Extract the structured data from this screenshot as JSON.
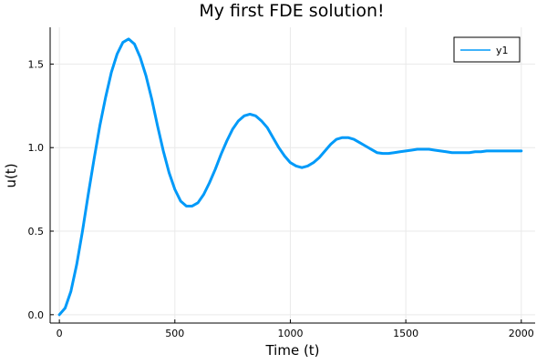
{
  "chart_data": {
    "type": "line",
    "title": "My first FDE solution!",
    "xlabel": "Time (t)",
    "ylabel": "u(t)",
    "xlim": [
      -40,
      2060
    ],
    "ylim": [
      -0.05,
      1.72
    ],
    "xticks": [
      0,
      500,
      1000,
      1500,
      2000
    ],
    "xtick_labels": [
      "0",
      "500",
      "1000",
      "1500",
      "2000"
    ],
    "yticks": [
      0.0,
      0.5,
      1.0,
      1.5
    ],
    "ytick_labels": [
      "0.0",
      "0.5",
      "1.0",
      "1.5"
    ],
    "grid": true,
    "legend_position": "top-right",
    "series": [
      {
        "name": "y1",
        "color": "#009af9",
        "x": [
          0,
          25,
          50,
          75,
          100,
          125,
          150,
          175,
          200,
          225,
          250,
          275,
          300,
          325,
          350,
          375,
          400,
          425,
          450,
          475,
          500,
          525,
          550,
          575,
          600,
          625,
          650,
          675,
          700,
          725,
          750,
          775,
          800,
          825,
          850,
          875,
          900,
          925,
          950,
          975,
          1000,
          1025,
          1050,
          1075,
          1100,
          1125,
          1150,
          1175,
          1200,
          1225,
          1250,
          1275,
          1300,
          1325,
          1350,
          1375,
          1400,
          1425,
          1450,
          1475,
          1500,
          1525,
          1550,
          1575,
          1600,
          1625,
          1650,
          1675,
          1700,
          1725,
          1750,
          1775,
          1800,
          1825,
          1850,
          1875,
          1900,
          1925,
          1950,
          1975,
          2000
        ],
        "y": [
          0.0,
          0.04,
          0.14,
          0.3,
          0.5,
          0.72,
          0.93,
          1.13,
          1.3,
          1.45,
          1.56,
          1.63,
          1.65,
          1.62,
          1.54,
          1.43,
          1.29,
          1.13,
          0.98,
          0.85,
          0.75,
          0.68,
          0.65,
          0.65,
          0.67,
          0.72,
          0.79,
          0.87,
          0.96,
          1.04,
          1.11,
          1.16,
          1.19,
          1.2,
          1.19,
          1.16,
          1.12,
          1.06,
          1.0,
          0.95,
          0.91,
          0.89,
          0.88,
          0.89,
          0.91,
          0.94,
          0.98,
          1.02,
          1.05,
          1.06,
          1.06,
          1.05,
          1.03,
          1.01,
          0.99,
          0.97,
          0.965,
          0.965,
          0.97,
          0.975,
          0.98,
          0.985,
          0.99,
          0.99,
          0.99,
          0.985,
          0.98,
          0.975,
          0.97,
          0.97,
          0.97,
          0.97,
          0.975,
          0.975,
          0.98,
          0.98,
          0.98,
          0.98,
          0.98,
          0.98,
          0.98
        ]
      }
    ]
  }
}
